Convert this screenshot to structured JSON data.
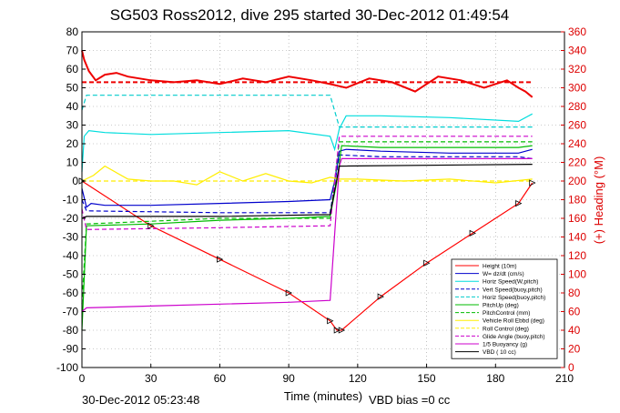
{
  "title": "SG503 Ross2012, dive 295 started 30-Dec-2012 01:49:54",
  "footer_left": "30-Dec-2012 05:23:48",
  "footer_right": "VBD bias =0 cc",
  "chart_data": {
    "type": "line",
    "xlabel": "Time (minutes)",
    "ylabel_right": "(+) Heading (°M)",
    "xlim": [
      0,
      210
    ],
    "ylim_left": [
      -100,
      80
    ],
    "ylim_right": [
      0,
      360
    ],
    "x_ticks": [
      0,
      30,
      60,
      90,
      120,
      150,
      180,
      210
    ],
    "y_ticks_left": [
      80,
      70,
      60,
      50,
      40,
      30,
      20,
      10,
      0,
      -10,
      -20,
      -30,
      -40,
      -50,
      -60,
      -70,
      -80,
      -90,
      -100
    ],
    "y_ticks_right": [
      360,
      340,
      320,
      300,
      280,
      260,
      240,
      220,
      200,
      180,
      160,
      140,
      120,
      100,
      80,
      60,
      40,
      20,
      0
    ],
    "grid": true,
    "legend_position": "bottom-right",
    "colors": {
      "axis_left": "#000000",
      "axis_right": "#dd0000",
      "grid": "#9a9a9a"
    },
    "series": [
      {
        "name": "Height (10m)",
        "color": "#ff0000",
        "style": "solid",
        "axis": "left",
        "x": [
          0,
          30,
          60,
          90,
          108,
          111,
          113,
          130,
          150,
          170,
          190,
          196
        ],
        "y": [
          0,
          -24,
          -42,
          -60,
          -75,
          -80,
          -80,
          -62,
          -44,
          -28,
          -12,
          -1
        ]
      },
      {
        "name": "W= dz/dt (cm/s)",
        "color": "#0000cc",
        "style": "solid",
        "axis": "left",
        "x": [
          0,
          2,
          4,
          10,
          30,
          60,
          90,
          108,
          110,
          112,
          115,
          130,
          160,
          190,
          196
        ],
        "y": [
          -4,
          -14,
          -12,
          -13,
          -13,
          -12,
          -11,
          -10,
          0,
          16,
          17,
          16,
          15,
          15,
          17
        ]
      },
      {
        "name": "Horiz Speed(W,pitch)",
        "color": "#00dddd",
        "style": "solid",
        "axis": "left",
        "x": [
          0,
          1,
          3,
          10,
          30,
          60,
          90,
          108,
          110,
          112,
          115,
          130,
          160,
          190,
          196
        ],
        "y": [
          5,
          24,
          27,
          26,
          25,
          26,
          27,
          24,
          17,
          28,
          35,
          35,
          34,
          32,
          36
        ]
      },
      {
        "name": "Vert Speed(buoy,pitch)",
        "color": "#0000cc",
        "style": "dashed",
        "axis": "left",
        "x": [
          0,
          2,
          60,
          90,
          108,
          112,
          130,
          190,
          196
        ],
        "y": [
          -10,
          -16,
          -17,
          -17,
          -17,
          14,
          13,
          13,
          12
        ]
      },
      {
        "name": "Horiz Speed(buoy,pitch)",
        "color": "#00cccc",
        "style": "dashed",
        "axis": "left",
        "x": [
          0,
          2,
          60,
          108,
          112,
          130,
          190,
          196
        ],
        "y": [
          38,
          46,
          46,
          46,
          29,
          29,
          29,
          29
        ]
      },
      {
        "name": "PitchUp (deg)",
        "color": "#00bb00",
        "style": "solid",
        "axis": "left",
        "x": [
          0,
          2,
          30,
          60,
          90,
          108,
          111,
          113,
          130,
          190,
          196
        ],
        "y": [
          -80,
          -24,
          -23,
          -21,
          -20,
          -19,
          0,
          19,
          18,
          18,
          19
        ]
      },
      {
        "name": "PitchControl (mm)",
        "color": "#00bb00",
        "style": "dashed",
        "axis": "left",
        "x": [
          0,
          2,
          60,
          108,
          112,
          196
        ],
        "y": [
          -66,
          -23,
          -20,
          -20,
          21,
          21
        ]
      },
      {
        "name": "Vehicle Roll Ebbd (deg)",
        "color": "#ffee00",
        "style": "solid",
        "axis": "left",
        "x": [
          0,
          5,
          10,
          20,
          30,
          40,
          50,
          60,
          70,
          80,
          90,
          100,
          108,
          112,
          120,
          140,
          160,
          180,
          196
        ],
        "y": [
          0,
          3,
          8,
          1,
          0,
          0,
          -2,
          5,
          0,
          4,
          0,
          -1,
          2,
          1,
          1,
          0,
          1,
          -1,
          1
        ]
      },
      {
        "name": "Roll Control (deg)",
        "color": "#ffee00",
        "style": "dashed",
        "axis": "left",
        "x": [
          0,
          196
        ],
        "y": [
          0,
          0
        ]
      },
      {
        "name": "Glide Angle (buoy,pitch)",
        "color": "#cc00cc",
        "style": "dashed",
        "axis": "left",
        "x": [
          0,
          2,
          60,
          108,
          112,
          196
        ],
        "y": [
          -15,
          -26,
          -25,
          -24,
          24,
          24
        ]
      },
      {
        "name": "1/5 Buoyancy (g)",
        "color": "#cc00cc",
        "style": "solid",
        "axis": "left",
        "x": [
          0,
          2,
          30,
          60,
          90,
          108,
          112,
          113,
          196
        ],
        "y": [
          -70,
          -68,
          -67,
          -66,
          -65,
          -64,
          8,
          12,
          12
        ]
      },
      {
        "name": "VBD ( 10 cc)",
        "color": "#000000",
        "style": "solid",
        "axis": "left",
        "x": [
          0,
          2,
          60,
          108,
          112,
          196
        ],
        "y": [
          -20,
          -19,
          -19,
          -18,
          8,
          9
        ]
      },
      {
        "name": "(+) Heading",
        "color": "#ee0000",
        "style": "solid",
        "axis": "right",
        "in_legend": false,
        "x": [
          0,
          1,
          3,
          6,
          10,
          15,
          20,
          30,
          40,
          50,
          60,
          70,
          80,
          90,
          100,
          108,
          115,
          125,
          135,
          145,
          155,
          165,
          175,
          185,
          190,
          193,
          196
        ],
        "y": [
          340,
          330,
          318,
          308,
          314,
          316,
          312,
          308,
          306,
          308,
          304,
          310,
          306,
          312,
          308,
          304,
          300,
          310,
          306,
          296,
          312,
          308,
          300,
          308,
          300,
          296,
          290
        ]
      },
      {
        "name": "Heading (dashed)",
        "color": "#ee0000",
        "style": "dashed",
        "axis": "right",
        "in_legend": false,
        "x": [
          0,
          196
        ],
        "y": [
          306,
          306
        ]
      }
    ]
  }
}
